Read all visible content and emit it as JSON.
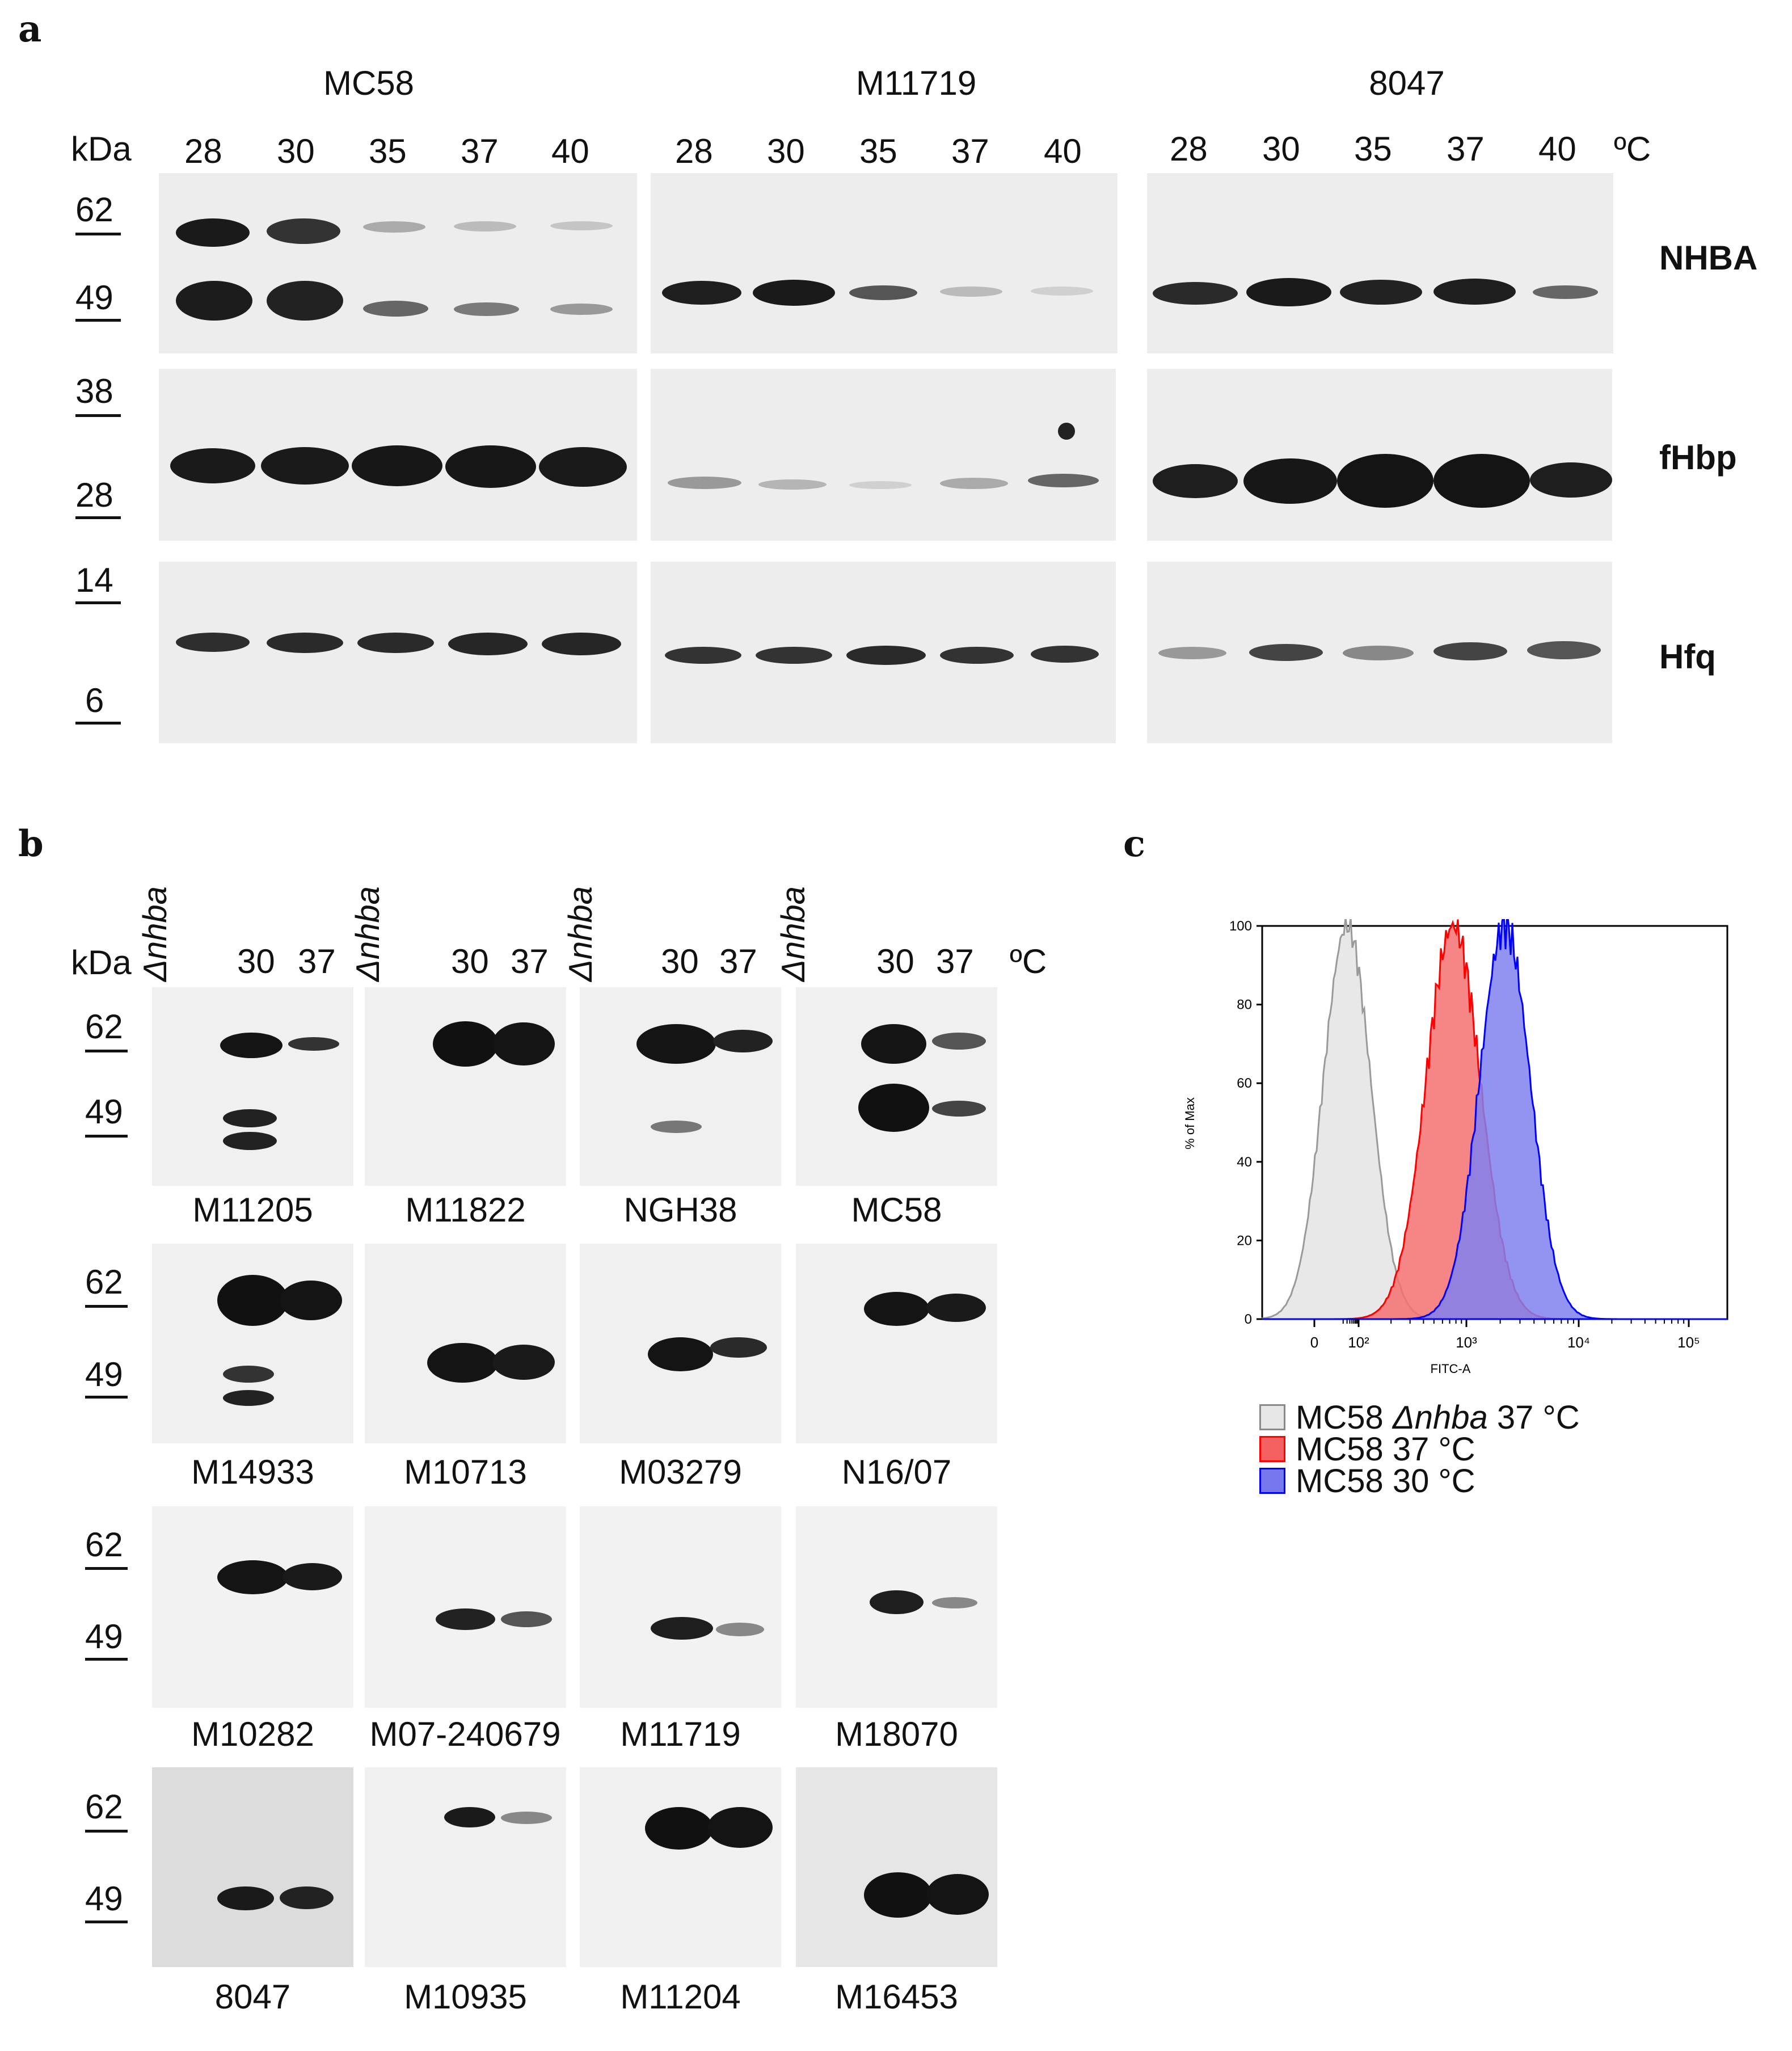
{
  "panel_labels": {
    "a": "a",
    "b": "b",
    "c": "c"
  },
  "panel_a": {
    "kda": "kDa",
    "unit": "ºC",
    "strains": [
      "MC58",
      "M11719",
      "8047"
    ],
    "temperatures": [
      "28",
      "30",
      "35",
      "37",
      "40"
    ],
    "mw_markers": [
      "62",
      "49",
      "38",
      "28",
      "14",
      "6"
    ],
    "proteins": [
      "NHBA",
      "fHbp",
      "Hfq"
    ]
  },
  "panel_b": {
    "kda": "kDa",
    "unit": "ºC",
    "lane_labels": [
      "Δnhba",
      "30",
      "37"
    ],
    "mw_markers": [
      "62",
      "49"
    ],
    "strains": [
      [
        "M11205",
        "M11822",
        "NGH38",
        "MC58"
      ],
      [
        "M14933",
        "M10713",
        "M03279",
        "N16/07"
      ],
      [
        "M10282",
        "M07-240679",
        "M11719",
        "M18070"
      ],
      [
        "8047",
        "M10935",
        "M11204",
        "M16453"
      ]
    ]
  },
  "panel_c": {
    "ylabel": "% of Max",
    "xlabel": "FITC-A",
    "y_ticks": [
      "0",
      "20",
      "40",
      "60",
      "80",
      "100"
    ],
    "x_ticks": [
      "0",
      "10²",
      "10³",
      "10⁴",
      "10⁵"
    ],
    "legend": [
      {
        "prefix": "MC58 ",
        "italic": "Δnhba",
        "suffix": " 37 °C",
        "color": "#e6e6e6",
        "edge": "#8a8a8a"
      },
      {
        "prefix": "MC58 37 °C",
        "italic": "",
        "suffix": "",
        "color": "#f46060",
        "edge": "#ff0000"
      },
      {
        "prefix": "MC58 30 °C",
        "italic": "",
        "suffix": "",
        "color": "#7777ee",
        "edge": "#0000ff"
      }
    ]
  },
  "chart_data": {
    "type": "area",
    "xlabel": "FITC-A",
    "ylabel": "% of Max",
    "ylim": [
      0,
      100
    ],
    "x_scale": "log",
    "series": [
      {
        "name": "MC58 Δnhba 37 °C",
        "peak_x": 30,
        "peak_y": 100
      },
      {
        "name": "MC58 37 °C",
        "peak_x": 800,
        "peak_y": 100
      },
      {
        "name": "MC58 30 °C",
        "peak_x": 2200,
        "peak_y": 100
      }
    ]
  }
}
